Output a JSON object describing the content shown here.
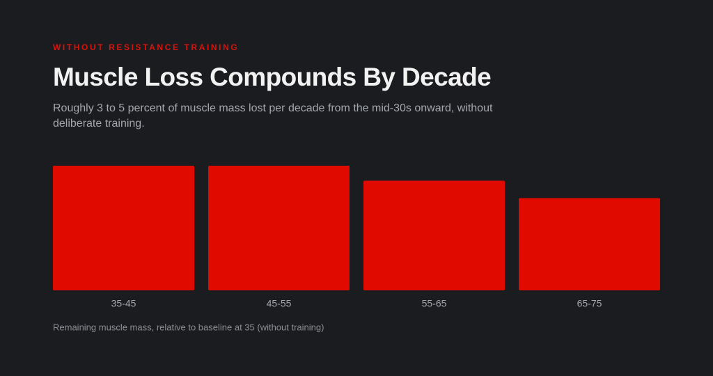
{
  "chart_data": {
    "type": "bar",
    "eyebrow": "WITHOUT RESISTANCE TRAINING",
    "title": "Muscle Loss Compounds By Decade",
    "subtitle": "Roughly 3 to 5 percent of muscle mass lost per decade from the mid-30s onward, without deliberate training.",
    "caption": "Remaining muscle mass, relative to baseline at 35 (without training)",
    "categories": [
      "35-45",
      "45-55",
      "55-65",
      "65-75"
    ],
    "values": [
      100,
      100,
      88,
      74
    ],
    "color": "#e00a00",
    "ylim": [
      0,
      100
    ]
  }
}
